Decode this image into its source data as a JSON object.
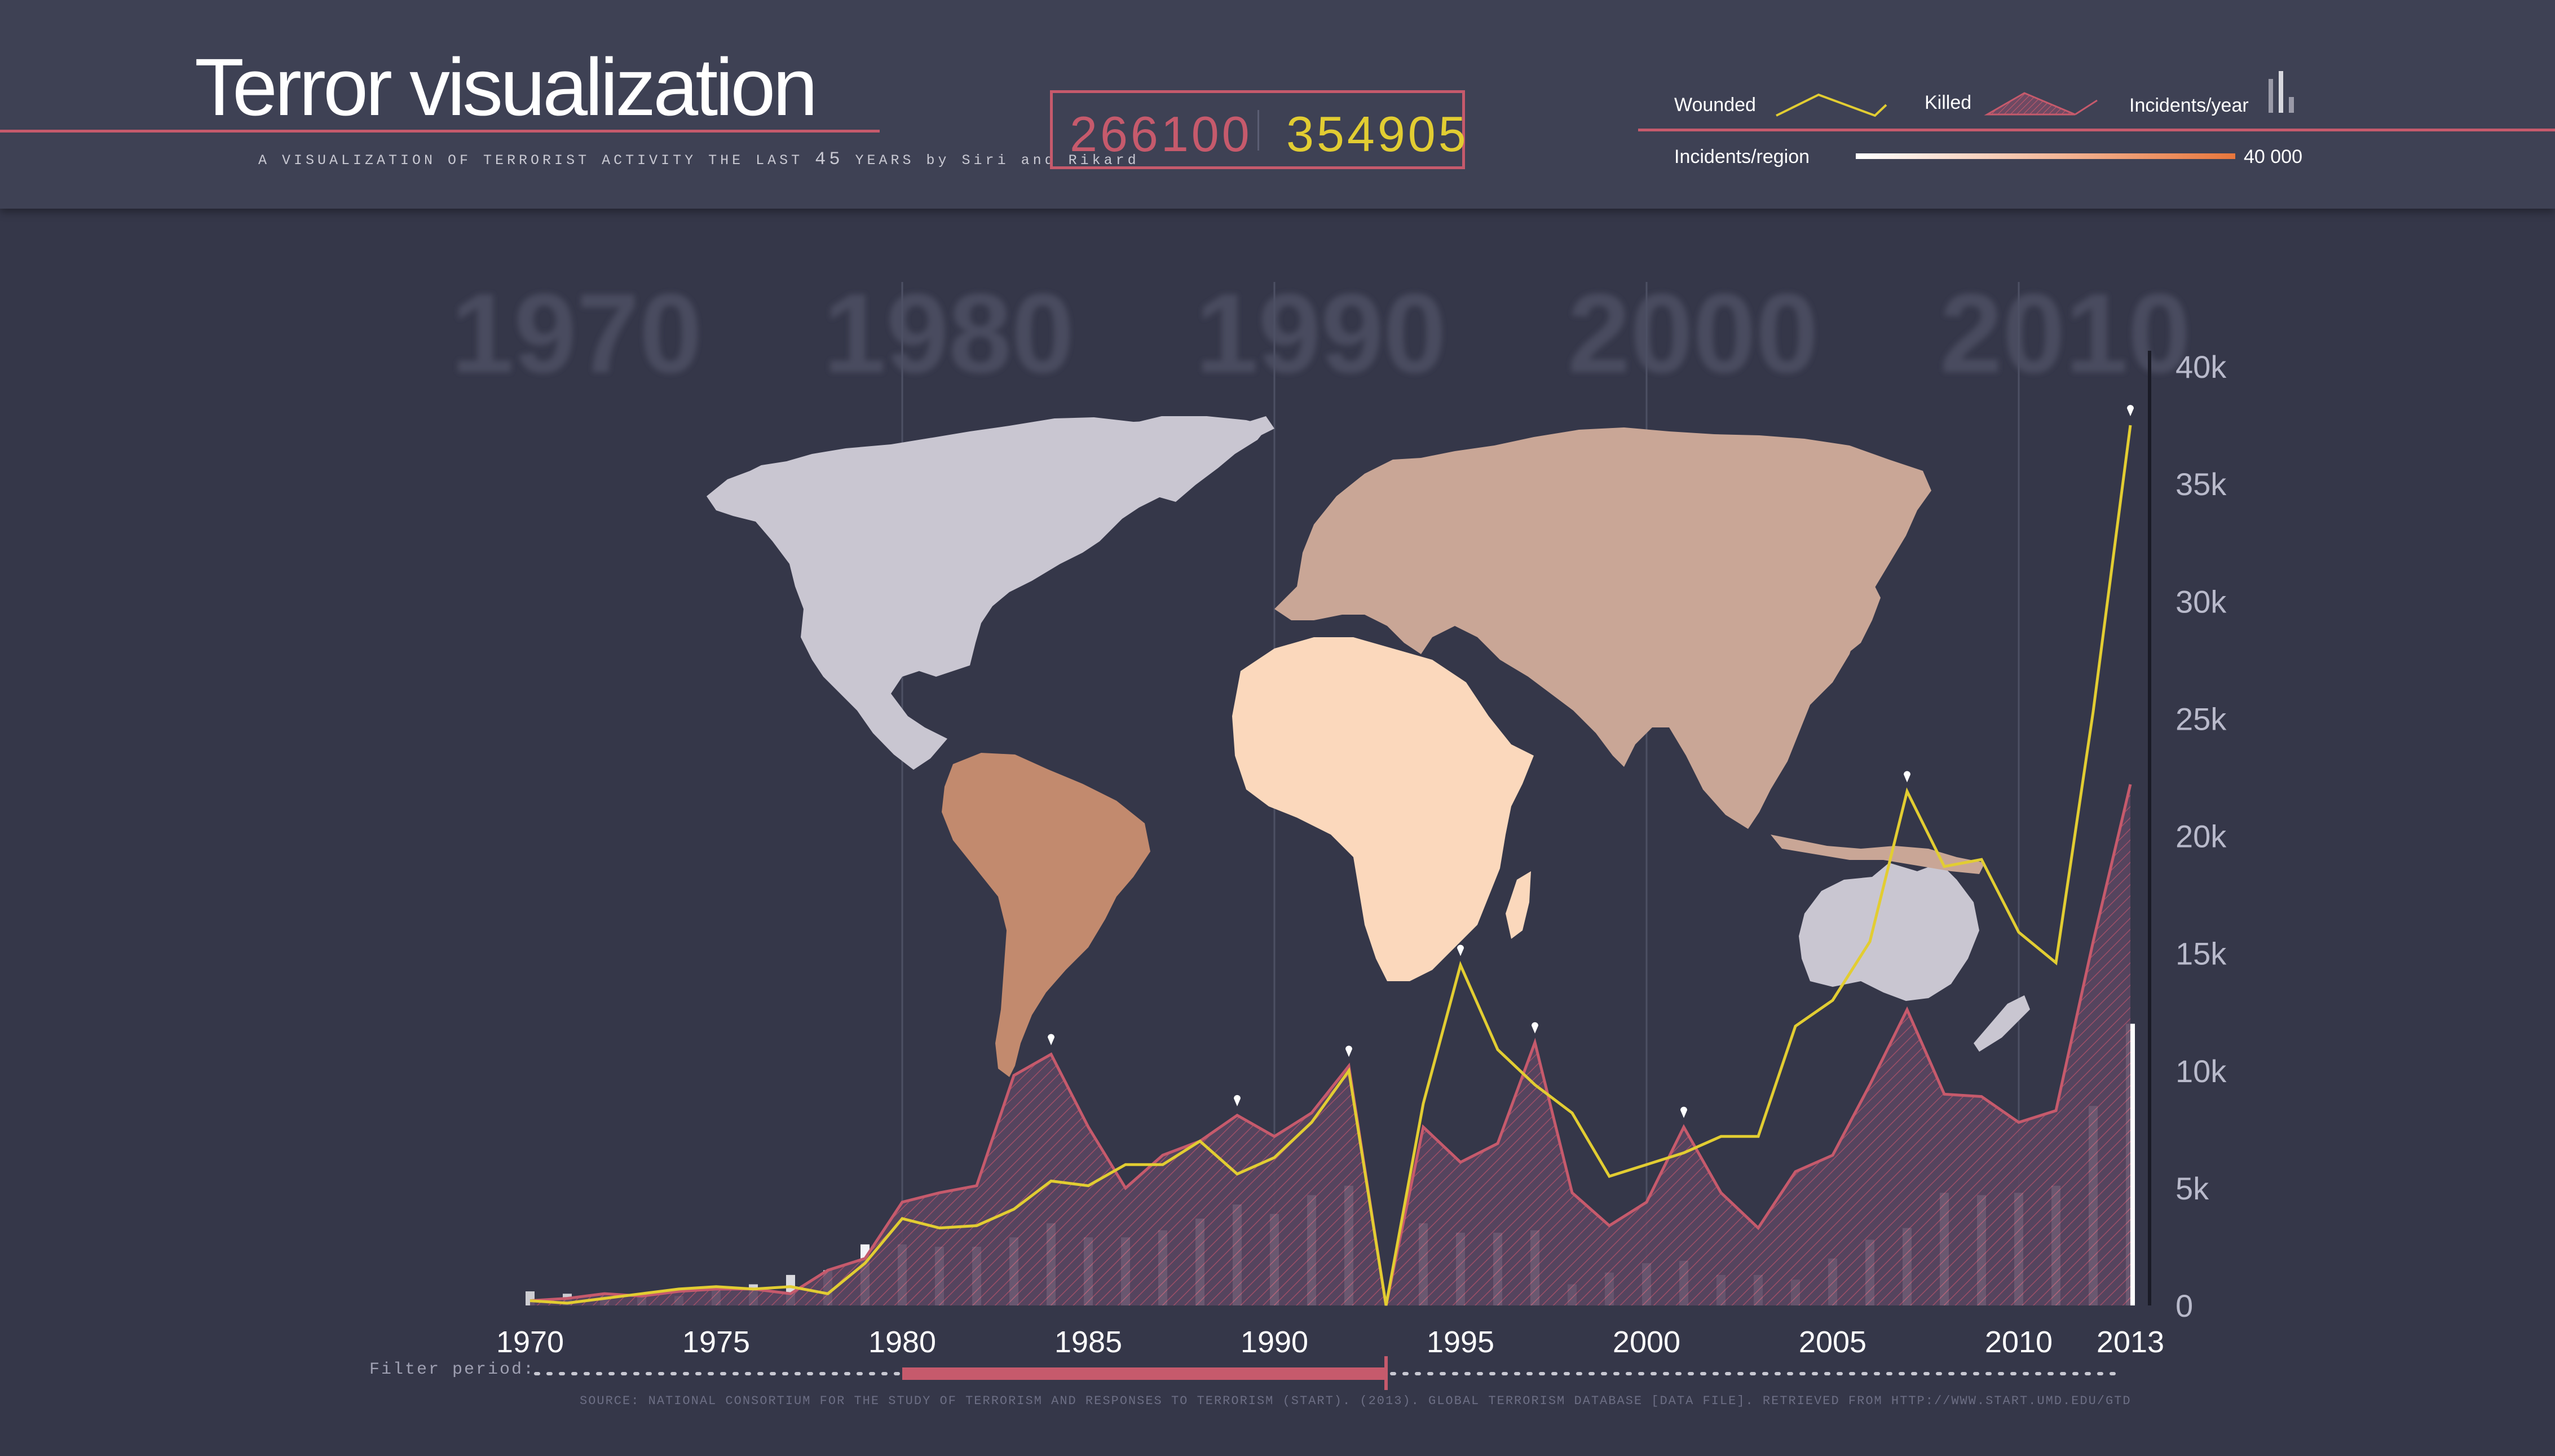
{
  "header": {
    "title": "Terror visualization",
    "subtitle_a": "A VISUALIZATION OF TERRORIST ACTIVITY THE LAST ",
    "subtitle_num": "45",
    "subtitle_b": " YEARS by Siri and Rikard",
    "total_killed": "266100",
    "total_wounded": "354905"
  },
  "legend": {
    "wounded": "Wounded",
    "killed": "Killed",
    "incidents_year": "Incidents/year",
    "incidents_region": "Incidents/region",
    "region_max": "40 000"
  },
  "colors": {
    "background": "#353749",
    "header": "#3e4154",
    "killed": "#c65a6c",
    "wounded": "#e2cd32",
    "bars": "#ffffff",
    "region_low": "#ffffff",
    "region_high": "#e8763c"
  },
  "map": {
    "regions": [
      {
        "name": "North America",
        "color": "#c9c6d1"
      },
      {
        "name": "South America",
        "color": "#c28a6e"
      },
      {
        "name": "Europe and Asia",
        "color": "#c9a696"
      },
      {
        "name": "Africa",
        "color": "#fbd8bc"
      },
      {
        "name": "Australia",
        "color": "#c9c6d1"
      }
    ]
  },
  "filter": {
    "label": "Filter period:",
    "start_year": 1980,
    "end_year": 1993
  },
  "source": "SOURCE: NATIONAL CONSORTIUM FOR THE STUDY OF TERRORISM AND RESPONSES TO TERRORISM (START). (2013). GLOBAL TERRORISM DATABASE [DATA FILE]. RETRIEVED FROM HTTP://WWW.START.UMD.EDU/GTD",
  "chart_data": {
    "type": "line",
    "decade_labels": [
      "1970",
      "1980",
      "1990",
      "2000",
      "2010"
    ],
    "x_tick_labels": [
      "1970",
      "1975",
      "1980",
      "1985",
      "1990",
      "1995",
      "2000",
      "2005",
      "2010",
      "2013"
    ],
    "y_tick_labels": [
      "0",
      "5k",
      "10k",
      "15k",
      "20k",
      "25k",
      "30k",
      "35k",
      "40k"
    ],
    "ylim": [
      0,
      40000
    ],
    "x": [
      1970,
      1971,
      1972,
      1973,
      1974,
      1975,
      1976,
      1977,
      1978,
      1979,
      1980,
      1981,
      1982,
      1983,
      1984,
      1985,
      1986,
      1987,
      1988,
      1989,
      1990,
      1991,
      1992,
      1993,
      1994,
      1995,
      1996,
      1997,
      1998,
      1999,
      2000,
      2001,
      2002,
      2003,
      2004,
      2005,
      2006,
      2007,
      2008,
      2009,
      2010,
      2011,
      2012,
      2013
    ],
    "series": [
      {
        "name": "Killed",
        "color": "#c65a6c",
        "values": [
          200,
          300,
          500,
          400,
          600,
          700,
          700,
          500,
          1500,
          2000,
          4400,
          4800,
          5100,
          9800,
          10700,
          7600,
          5000,
          6400,
          7000,
          8100,
          7200,
          8200,
          10200,
          0,
          7600,
          6100,
          6900,
          11200,
          4800,
          3400,
          4400,
          7600,
          4800,
          3300,
          5700,
          6400,
          9400,
          12600,
          9000,
          8900,
          7800,
          8300,
          15500,
          22200
        ]
      },
      {
        "name": "Wounded",
        "color": "#e2cd32",
        "values": [
          200,
          100,
          300,
          500,
          700,
          800,
          700,
          800,
          500,
          1800,
          3700,
          3300,
          3400,
          4100,
          5300,
          5100,
          6000,
          6000,
          7000,
          5600,
          6300,
          7800,
          10000,
          0,
          8600,
          14500,
          10900,
          9400,
          8200,
          5500,
          6000,
          6500,
          7200,
          7200,
          11900,
          13000,
          15500,
          21900,
          18700,
          19000,
          15900,
          14600,
          25300,
          37500
        ]
      },
      {
        "name": "Incidents/year",
        "values": [
          600,
          500,
          400,
          400,
          400,
          700,
          900,
          1300,
          1500,
          2600,
          2600,
          2500,
          2500,
          2900,
          3500,
          2900,
          2900,
          3200,
          3700,
          4300,
          3900,
          4700,
          5100,
          0,
          3500,
          3100,
          3100,
          3200,
          900,
          1400,
          1800,
          1900,
          1300,
          1300,
          1100,
          2000,
          2800,
          3300,
          4800,
          4700,
          4800,
          5100,
          8500,
          12000
        ]
      }
    ],
    "markers": [
      1984,
      1989,
      1992,
      1995,
      1997,
      2001,
      2007,
      2013
    ],
    "grid": "vertical decade lines",
    "legend_position": "top-right"
  }
}
